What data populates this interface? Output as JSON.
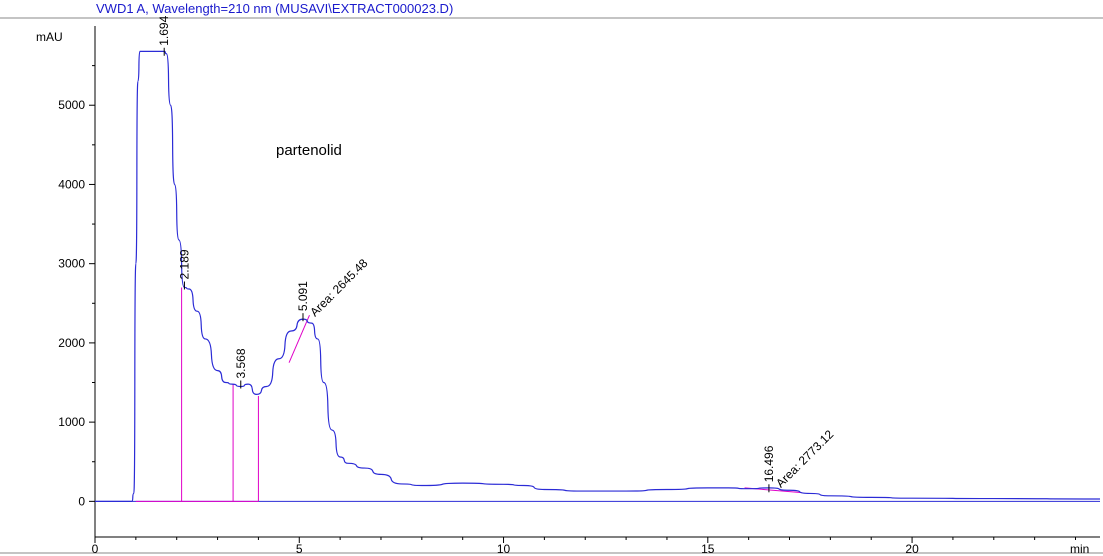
{
  "header": {
    "title": "VWD1 A, Wavelength=210 nm (MUSAVI\\EXTRACT000023.D)"
  },
  "chart_data": {
    "type": "line",
    "title": "VWD1 A, Wavelength=210 nm (MUSAVI\\EXTRACT000023.D)",
    "xlabel": "min",
    "ylabel": "mAU",
    "xlim": [
      0,
      24.6
    ],
    "ylim": [
      -450,
      6000
    ],
    "xticks": [
      0,
      5,
      10,
      15,
      20
    ],
    "yticks": [
      0,
      1000,
      2000,
      3000,
      4000,
      5000
    ],
    "annotation": "partenolid",
    "colors": {
      "trace": "#2b2bd6",
      "peak_marker": "#e000c8",
      "axis": "#000000",
      "title": "#1a1acc"
    },
    "series": [
      {
        "x": [
          0,
          0.9,
          0.95,
          1.0,
          1.05,
          1.1,
          1.694,
          1.75,
          1.85,
          1.95,
          2.05,
          2.189,
          2.3,
          2.5,
          2.7,
          3.0,
          3.2,
          3.35,
          3.568,
          3.75,
          3.95,
          4.2,
          4.5,
          4.8,
          5.091,
          5.3,
          5.45,
          5.6,
          5.8,
          6.0,
          6.2,
          6.6,
          7.0,
          7.5,
          8.0,
          9.0,
          10.0,
          10.5,
          11.0,
          12.0,
          13.0,
          14.0,
          15.0,
          15.5,
          16.0,
          16.496,
          17.0,
          17.5,
          18.0,
          19.0,
          20.0,
          22.0,
          24.6
        ],
        "y": [
          0,
          0,
          100,
          3000,
          5300,
          5680,
          5680,
          5650,
          5000,
          4000,
          3300,
          2700,
          2680,
          2400,
          2050,
          1650,
          1500,
          1480,
          1450,
          1480,
          1350,
          1450,
          1800,
          2150,
          2300,
          2250,
          2050,
          1500,
          900,
          560,
          480,
          420,
          340,
          220,
          200,
          230,
          215,
          200,
          150,
          130,
          130,
          150,
          170,
          170,
          160,
          170,
          140,
          100,
          70,
          50,
          40,
          35,
          30
        ]
      }
    ],
    "peaks": [
      {
        "rt": 1.694,
        "label": "1.694",
        "label_y": 5700
      },
      {
        "rt": 2.189,
        "label": "2.189",
        "label_y": 2750,
        "baseline_x": 2.12,
        "baseline_y": 2700
      },
      {
        "rt": 3.568,
        "label": "3.568",
        "label_y": 1500,
        "baseline_x": 3.38,
        "baseline_y": 1480
      },
      {
        "rt": 5.091,
        "label": "5.091",
        "label_y": 2350,
        "area": "Area: 2645.48"
      },
      {
        "rt": 16.496,
        "label": "16.496",
        "label_y": 190,
        "area": "Area: 2773.12"
      }
    ],
    "integration_box": {
      "x_end": 4.0,
      "y_top": 1330
    }
  }
}
